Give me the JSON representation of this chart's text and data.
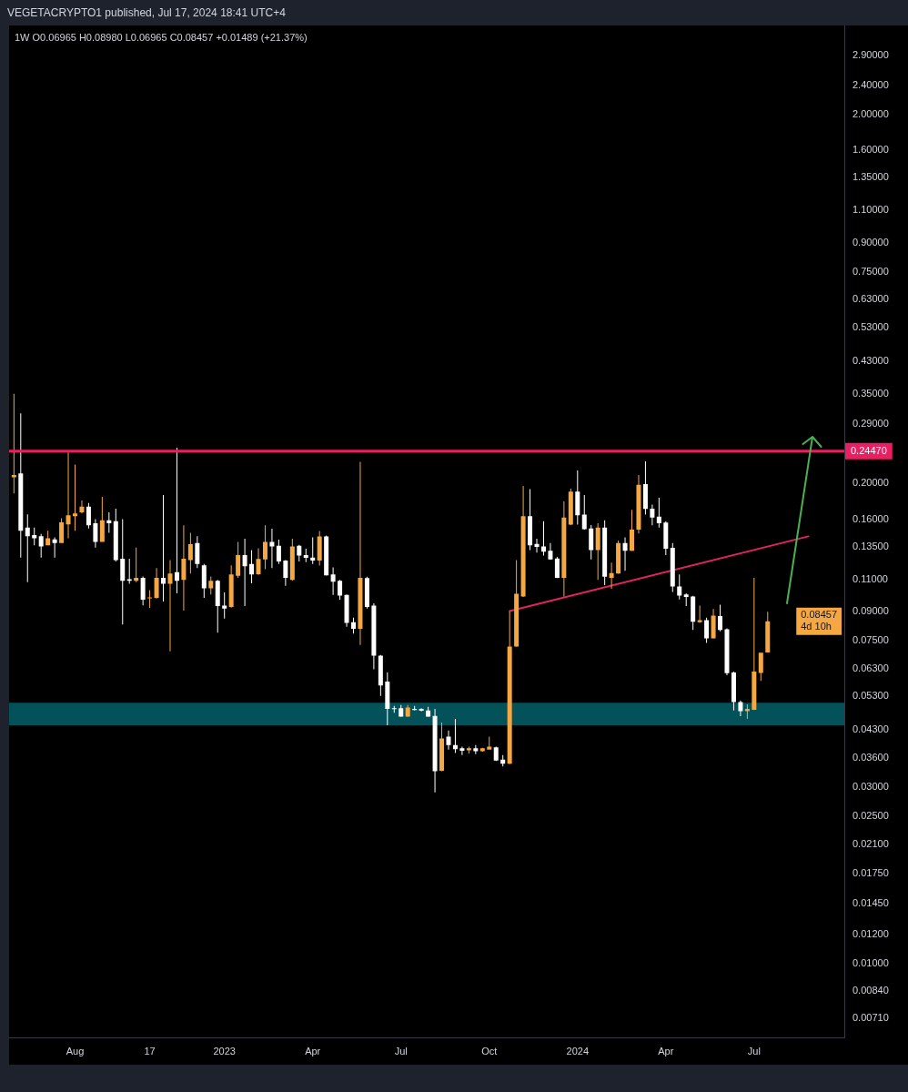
{
  "chart_data": {
    "type": "candlestick",
    "title": "VEGETACRYPTO1 published, Jul 17, 2024 18:41 UTC+4",
    "subtitle": "1W O0.06965 H0.08980 L0.06965 C0.08457 +0.01489 (+21.37%)",
    "x": [
      "2022-05-30",
      "2022-06-06",
      "2022-06-13",
      "2022-06-20",
      "2022-06-27",
      "2022-07-04",
      "2022-07-11",
      "2022-07-18",
      "2022-07-25",
      "2022-08-01",
      "2022-08-08",
      "2022-08-15",
      "2022-08-22",
      "2022-08-29",
      "2022-09-05",
      "2022-09-12",
      "2022-09-19",
      "2022-09-26",
      "2022-10-03",
      "2022-10-10",
      "2022-10-17",
      "2022-10-24",
      "2022-10-31",
      "2022-11-07",
      "2022-11-14",
      "2022-11-21",
      "2022-11-28",
      "2022-12-05",
      "2022-12-12",
      "2022-12-19",
      "2022-12-26",
      "2023-01-02",
      "2023-01-09",
      "2023-01-16",
      "2023-01-23",
      "2023-01-30",
      "2023-02-06",
      "2023-02-13",
      "2023-02-20",
      "2023-02-27",
      "2023-03-06",
      "2023-03-13",
      "2023-03-20",
      "2023-03-27",
      "2023-04-03",
      "2023-04-10",
      "2023-04-17",
      "2023-04-24",
      "2023-05-01",
      "2023-05-08",
      "2023-05-15",
      "2023-05-22",
      "2023-05-29",
      "2023-06-05",
      "2023-06-12",
      "2023-06-19",
      "2023-06-26",
      "2023-07-03",
      "2023-07-10",
      "2023-07-17",
      "2023-07-24",
      "2023-07-31",
      "2023-08-07",
      "2023-08-14",
      "2023-08-21",
      "2023-08-28",
      "2023-09-04",
      "2023-09-11",
      "2023-09-18",
      "2023-09-25",
      "2023-10-02",
      "2023-10-09",
      "2023-10-16",
      "2023-10-23",
      "2023-10-30",
      "2023-11-06",
      "2023-11-13",
      "2023-11-20",
      "2023-11-27",
      "2023-12-04",
      "2023-12-11",
      "2023-12-18",
      "2023-12-25",
      "2024-01-01",
      "2024-01-08",
      "2024-01-15",
      "2024-01-22",
      "2024-01-29",
      "2024-02-05",
      "2024-02-12",
      "2024-02-19",
      "2024-02-26",
      "2024-03-04",
      "2024-03-11",
      "2024-03-18",
      "2024-03-25",
      "2024-04-01",
      "2024-04-08",
      "2024-04-15",
      "2024-04-22",
      "2024-04-29",
      "2024-05-06",
      "2024-05-13",
      "2024-05-20",
      "2024-05-27",
      "2024-06-03",
      "2024-06-10",
      "2024-06-17",
      "2024-06-24",
      "2024-07-01",
      "2024-07-08",
      "2024-07-15"
    ],
    "ohlc": [
      [
        0.208,
        0.35,
        0.188,
        0.211
      ],
      [
        0.213,
        0.31,
        0.126,
        0.149
      ],
      [
        0.152,
        0.165,
        0.108,
        0.144
      ],
      [
        0.145,
        0.152,
        0.136,
        0.142
      ],
      [
        0.144,
        0.146,
        0.126,
        0.135
      ],
      [
        0.136,
        0.149,
        0.136,
        0.142
      ],
      [
        0.141,
        0.143,
        0.126,
        0.138
      ],
      [
        0.138,
        0.161,
        0.138,
        0.157
      ],
      [
        0.155,
        0.245,
        0.142,
        0.164
      ],
      [
        0.163,
        0.225,
        0.149,
        0.166
      ],
      [
        0.167,
        0.18,
        0.166,
        0.173
      ],
      [
        0.173,
        0.177,
        0.151,
        0.154
      ],
      [
        0.156,
        0.16,
        0.134,
        0.139
      ],
      [
        0.139,
        0.184,
        0.139,
        0.159
      ],
      [
        0.159,
        0.167,
        0.147,
        0.156
      ],
      [
        0.158,
        0.171,
        0.123,
        0.124
      ],
      [
        0.125,
        0.16,
        0.0829,
        0.109
      ],
      [
        0.11,
        0.125,
        0.107,
        0.109
      ],
      [
        0.109,
        0.134,
        0.108,
        0.111
      ],
      [
        0.111,
        0.112,
        0.0934,
        0.0968
      ],
      [
        0.0978,
        0.1028,
        0.092,
        0.0982
      ],
      [
        0.098,
        0.118,
        0.0975,
        0.111
      ],
      [
        0.111,
        0.186,
        0.0957,
        0.107
      ],
      [
        0.107,
        0.124,
        0.0702,
        0.114
      ],
      [
        0.115,
        0.25,
        0.1007,
        0.109
      ],
      [
        0.1095,
        0.154,
        0.0904,
        0.125
      ],
      [
        0.124,
        0.147,
        0.114,
        0.137
      ],
      [
        0.138,
        0.144,
        0.118,
        0.121
      ],
      [
        0.12,
        0.121,
        0.098,
        0.104
      ],
      [
        0.104,
        0.112,
        0.1,
        0.109
      ],
      [
        0.109,
        0.1095,
        0.0788,
        0.093
      ],
      [
        0.0933,
        0.1013,
        0.0861,
        0.0916
      ],
      [
        0.0925,
        0.12,
        0.0922,
        0.1133
      ],
      [
        0.1124,
        0.139,
        0.111,
        0.128
      ],
      [
        0.128,
        0.1416,
        0.093,
        0.1194
      ],
      [
        0.121,
        0.132,
        0.1072,
        0.1133
      ],
      [
        0.1135,
        0.1334,
        0.113,
        0.1248
      ],
      [
        0.1245,
        0.154,
        0.1172,
        0.139
      ],
      [
        0.139,
        0.1508,
        0.1179,
        0.135
      ],
      [
        0.1356,
        0.1408,
        0.121,
        0.1229
      ],
      [
        0.1236,
        0.124,
        0.1056,
        0.111
      ],
      [
        0.1096,
        0.1416,
        0.109,
        0.135
      ],
      [
        0.1356,
        0.1364,
        0.1229,
        0.1276
      ],
      [
        0.128,
        0.1331,
        0.1224,
        0.1257
      ],
      [
        0.126,
        0.143,
        0.121,
        0.1236
      ],
      [
        0.1236,
        0.1486,
        0.1199,
        0.1438
      ],
      [
        0.1438,
        0.1445,
        0.1125,
        0.1128
      ],
      [
        0.1133,
        0.1184,
        0.0998,
        0.1083
      ],
      [
        0.1089,
        0.1096,
        0.0968,
        0.0994
      ],
      [
        0.0998,
        0.1001,
        0.0818,
        0.0838
      ],
      [
        0.0841,
        0.0865,
        0.0784,
        0.0807
      ],
      [
        0.0807,
        0.229,
        0.073,
        0.111
      ],
      [
        0.1108,
        0.1118,
        0.0916,
        0.0925
      ],
      [
        0.0933,
        0.0946,
        0.0627,
        0.0683
      ],
      [
        0.0683,
        0.0686,
        0.0531,
        0.0567
      ],
      [
        0.0581,
        0.0615,
        0.0442,
        0.049
      ],
      [
        0.0492,
        0.0499,
        0.0478,
        0.049
      ],
      [
        0.0492,
        0.0502,
        0.0466,
        0.0467
      ],
      [
        0.0467,
        0.0502,
        0.0466,
        0.0494
      ],
      [
        0.049,
        0.0499,
        0.0485,
        0.0486
      ],
      [
        0.049,
        0.0492,
        0.0482,
        0.0484
      ],
      [
        0.0485,
        0.0496,
        0.0466,
        0.0467
      ],
      [
        0.0469,
        0.049,
        0.0291,
        0.0332
      ],
      [
        0.0333,
        0.045,
        0.0332,
        0.0407
      ],
      [
        0.0412,
        0.0428,
        0.038,
        0.0391
      ],
      [
        0.0391,
        0.046,
        0.0372,
        0.0381
      ],
      [
        0.0383,
        0.0387,
        0.0367,
        0.0377
      ],
      [
        0.0378,
        0.0387,
        0.0371,
        0.0383
      ],
      [
        0.0383,
        0.0391,
        0.0369,
        0.0376
      ],
      [
        0.0376,
        0.0384,
        0.0375,
        0.0383
      ],
      [
        0.038,
        0.0412,
        0.038,
        0.0387
      ],
      [
        0.0385,
        0.0387,
        0.0354,
        0.0355
      ],
      [
        0.0357,
        0.0367,
        0.0342,
        0.0348
      ],
      [
        0.0348,
        0.0899,
        0.0347,
        0.0723
      ],
      [
        0.0723,
        0.124,
        0.0722,
        0.1005
      ],
      [
        0.0988,
        0.197,
        0.0985,
        0.163
      ],
      [
        0.163,
        0.193,
        0.132,
        0.136
      ],
      [
        0.1372,
        0.1416,
        0.13,
        0.1346
      ],
      [
        0.135,
        0.158,
        0.1276,
        0.1306
      ],
      [
        0.1314,
        0.138,
        0.1243,
        0.1245
      ],
      [
        0.1252,
        0.1264,
        0.1108,
        0.111
      ],
      [
        0.111,
        0.1788,
        0.0988,
        0.1618
      ],
      [
        0.1548,
        0.1936,
        0.154,
        0.19
      ],
      [
        0.19,
        0.217,
        0.1548,
        0.164
      ],
      [
        0.1648,
        0.186,
        0.15,
        0.1505
      ],
      [
        0.151,
        0.1543,
        0.1245,
        0.132
      ],
      [
        0.132,
        0.156,
        0.1096,
        0.152
      ],
      [
        0.152,
        0.159,
        0.106,
        0.1118
      ],
      [
        0.111,
        0.1221,
        0.1036,
        0.1143
      ],
      [
        0.114,
        0.14,
        0.1138,
        0.138
      ],
      [
        0.138,
        0.143,
        0.116,
        0.1314
      ],
      [
        0.1314,
        0.1696,
        0.1312,
        0.15
      ],
      [
        0.15,
        0.211,
        0.1463,
        0.1985
      ],
      [
        0.1993,
        0.2296,
        0.1648,
        0.1706
      ],
      [
        0.171,
        0.1754,
        0.154,
        0.1618
      ],
      [
        0.1627,
        0.183,
        0.152,
        0.156
      ],
      [
        0.1567,
        0.158,
        0.1279,
        0.1331
      ],
      [
        0.1338,
        0.138,
        0.1017,
        0.1052
      ],
      [
        0.1052,
        0.1133,
        0.097,
        0.0994
      ],
      [
        0.1001,
        0.1007,
        0.093,
        0.0985
      ],
      [
        0.0988,
        0.0992,
        0.0802,
        0.0844
      ],
      [
        0.0841,
        0.0933,
        0.0838,
        0.0852
      ],
      [
        0.0852,
        0.0865,
        0.0739,
        0.0761
      ],
      [
        0.0761,
        0.0913,
        0.076,
        0.0877
      ],
      [
        0.0874,
        0.0938,
        0.0795,
        0.0802
      ],
      [
        0.0805,
        0.081,
        0.0604,
        0.0612
      ],
      [
        0.0615,
        0.0618,
        0.0485,
        0.0511
      ],
      [
        0.0511,
        0.0516,
        0.0468,
        0.0483
      ],
      [
        0.0483,
        0.0504,
        0.046,
        0.049
      ],
      [
        0.0487,
        0.111,
        0.0486,
        0.0618
      ],
      [
        0.0613,
        0.0696,
        0.0583,
        0.0696
      ],
      [
        0.06965,
        0.0898,
        0.06965,
        0.08457
      ]
    ],
    "colors": [
      "#f5a742",
      "#ffffff",
      "#ffffff",
      "#ffffff",
      "#ffffff",
      "#f5a742",
      "#ffffff",
      "#f5a742",
      "#f5a742",
      "#f5a742",
      "#f5a742",
      "#ffffff",
      "#ffffff",
      "#f5a742",
      "#ffffff",
      "#ffffff",
      "#ffffff",
      "#ffffff",
      "#f5a742",
      "#ffffff",
      "#f5a742",
      "#f5a742",
      "#ffffff",
      "#f5a742",
      "#ffffff",
      "#f5a742",
      "#f5a742",
      "#ffffff",
      "#ffffff",
      "#f5a742",
      "#ffffff",
      "#ffffff",
      "#f5a742",
      "#f5a742",
      "#ffffff",
      "#ffffff",
      "#f5a742",
      "#f5a742",
      "#ffffff",
      "#ffffff",
      "#ffffff",
      "#f5a742",
      "#ffffff",
      "#ffffff",
      "#ffffff",
      "#f5a742",
      "#ffffff",
      "#ffffff",
      "#ffffff",
      "#ffffff",
      "#ffffff",
      "#f5a742",
      "#ffffff",
      "#ffffff",
      "#ffffff",
      "#ffffff",
      "#ffffff",
      "#ffffff",
      "#f5a742",
      "#ffffff",
      "#ffffff",
      "#ffffff",
      "#ffffff",
      "#f5a742",
      "#ffffff",
      "#ffffff",
      "#ffffff",
      "#f5a742",
      "#ffffff",
      "#f5a742",
      "#f5a742",
      "#ffffff",
      "#ffffff",
      "#f5a742",
      "#f5a742",
      "#f5a742",
      "#ffffff",
      "#ffffff",
      "#ffffff",
      "#ffffff",
      "#ffffff",
      "#f5a742",
      "#f5a742",
      "#ffffff",
      "#ffffff",
      "#ffffff",
      "#f5a742",
      "#ffffff",
      "#f5a742",
      "#f5a742",
      "#ffffff",
      "#f5a742",
      "#f5a742",
      "#ffffff",
      "#ffffff",
      "#ffffff",
      "#ffffff",
      "#ffffff",
      "#ffffff",
      "#ffffff",
      "#ffffff",
      "#f5a742",
      "#ffffff",
      "#f5a742",
      "#ffffff",
      "#ffffff",
      "#ffffff",
      "#ffffff",
      "#f5a742",
      "#f5a742",
      "#f5a742",
      "#f5a742"
    ],
    "series": [
      {
        "type": "line",
        "x": [
          "2023-10-23",
          "2024-08-26"
        ],
        "values": [
          0.0902,
          0.1438
        ],
        "color": "#e0245e"
      }
    ],
    "xlim": [
      "2022-05-25",
      "2024-10-02"
    ],
    "xticks": [
      {
        "value": "2022-08-01",
        "label": "Aug"
      },
      {
        "value": "2022-10-17",
        "label": "17"
      },
      {
        "value": "2023-01-02",
        "label": "2023"
      },
      {
        "value": "2023-04-03",
        "label": "Apr"
      },
      {
        "value": "2023-07-03",
        "label": "Jul"
      },
      {
        "value": "2023-10-02",
        "label": "Oct"
      },
      {
        "value": "2024-01-01",
        "label": "2024"
      },
      {
        "value": "2024-04-01",
        "label": "Apr"
      },
      {
        "value": "2024-07-01",
        "label": "Jul"
      }
    ],
    "ylim": [
      0.0063,
      3.49
    ],
    "log": true,
    "yticks": [
      {
        "value": 2.9,
        "label": "2.90000"
      },
      {
        "value": 2.4,
        "label": "2.40000"
      },
      {
        "value": 2,
        "label": "2.00000"
      },
      {
        "value": 1.6,
        "label": "1.60000"
      },
      {
        "value": 1.35,
        "label": "1.35000"
      },
      {
        "value": 1.1,
        "label": "1.10000"
      },
      {
        "value": 0.9,
        "label": "0.90000"
      },
      {
        "value": 0.75,
        "label": "0.75000"
      },
      {
        "value": 0.63,
        "label": "0.63000"
      },
      {
        "value": 0.53,
        "label": "0.53000"
      },
      {
        "value": 0.43,
        "label": "0.43000"
      },
      {
        "value": 0.35,
        "label": "0.35000"
      },
      {
        "value": 0.29,
        "label": "0.29000"
      },
      {
        "value": 0.2,
        "label": "0.20000"
      },
      {
        "value": 0.16,
        "label": "0.16000"
      },
      {
        "value": 0.135,
        "label": "0.13500"
      },
      {
        "value": 0.11,
        "label": "0.11000"
      },
      {
        "value": 0.09,
        "label": "0.09000"
      },
      {
        "value": 0.075,
        "label": "0.07500"
      },
      {
        "value": 0.063,
        "label": "0.06300"
      },
      {
        "value": 0.053,
        "label": "0.05300"
      },
      {
        "value": 0.043,
        "label": "0.04300"
      },
      {
        "value": 0.036,
        "label": "0.03600"
      },
      {
        "value": 0.03,
        "label": "0.03000"
      },
      {
        "value": 0.025,
        "label": "0.02500"
      },
      {
        "value": 0.021,
        "label": "0.02100"
      },
      {
        "value": 0.0175,
        "label": "0.01750"
      },
      {
        "value": 0.0145,
        "label": "0.01450"
      },
      {
        "value": 0.012,
        "label": "0.01200"
      },
      {
        "value": 0.01,
        "label": "0.01000"
      },
      {
        "value": 0.0084,
        "label": "0.00840"
      },
      {
        "value": 0.0071,
        "label": "0.00710"
      }
    ],
    "ref_lines": [
      {
        "axis": "y",
        "value": 0.2447,
        "label": "0.24470",
        "color": "#e91e63"
      }
    ],
    "bands": [
      {
        "axis": "y",
        "from": 0.0442,
        "to": 0.0509,
        "color": "#03525a"
      }
    ],
    "annotations": [
      "0.08457",
      "4d 10h"
    ]
  }
}
